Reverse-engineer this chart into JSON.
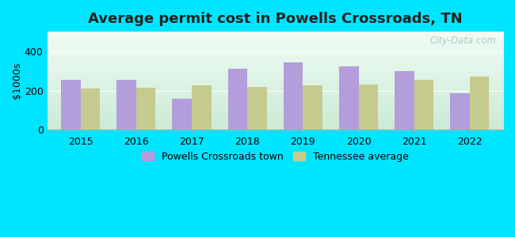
{
  "title": "Average permit cost in Powells Crossroads, TN",
  "ylabel": "$1000s",
  "years": [
    2015,
    2016,
    2017,
    2018,
    2019,
    2020,
    2021,
    2022
  ],
  "town_values": [
    255,
    255,
    160,
    310,
    345,
    325,
    300,
    185
  ],
  "tn_values": [
    210,
    215,
    225,
    220,
    228,
    230,
    255,
    270
  ],
  "town_color": "#b39ddb",
  "tn_color": "#c5cb8e",
  "ylim": [
    0,
    500
  ],
  "yticks": [
    0,
    200,
    400
  ],
  "background_outer": "#00e5ff",
  "bar_width": 0.35,
  "title_fontsize": 13,
  "legend_label_town": "Powells Crossroads town",
  "legend_label_tn": "Tennessee average",
  "watermark": "City-Data.com"
}
